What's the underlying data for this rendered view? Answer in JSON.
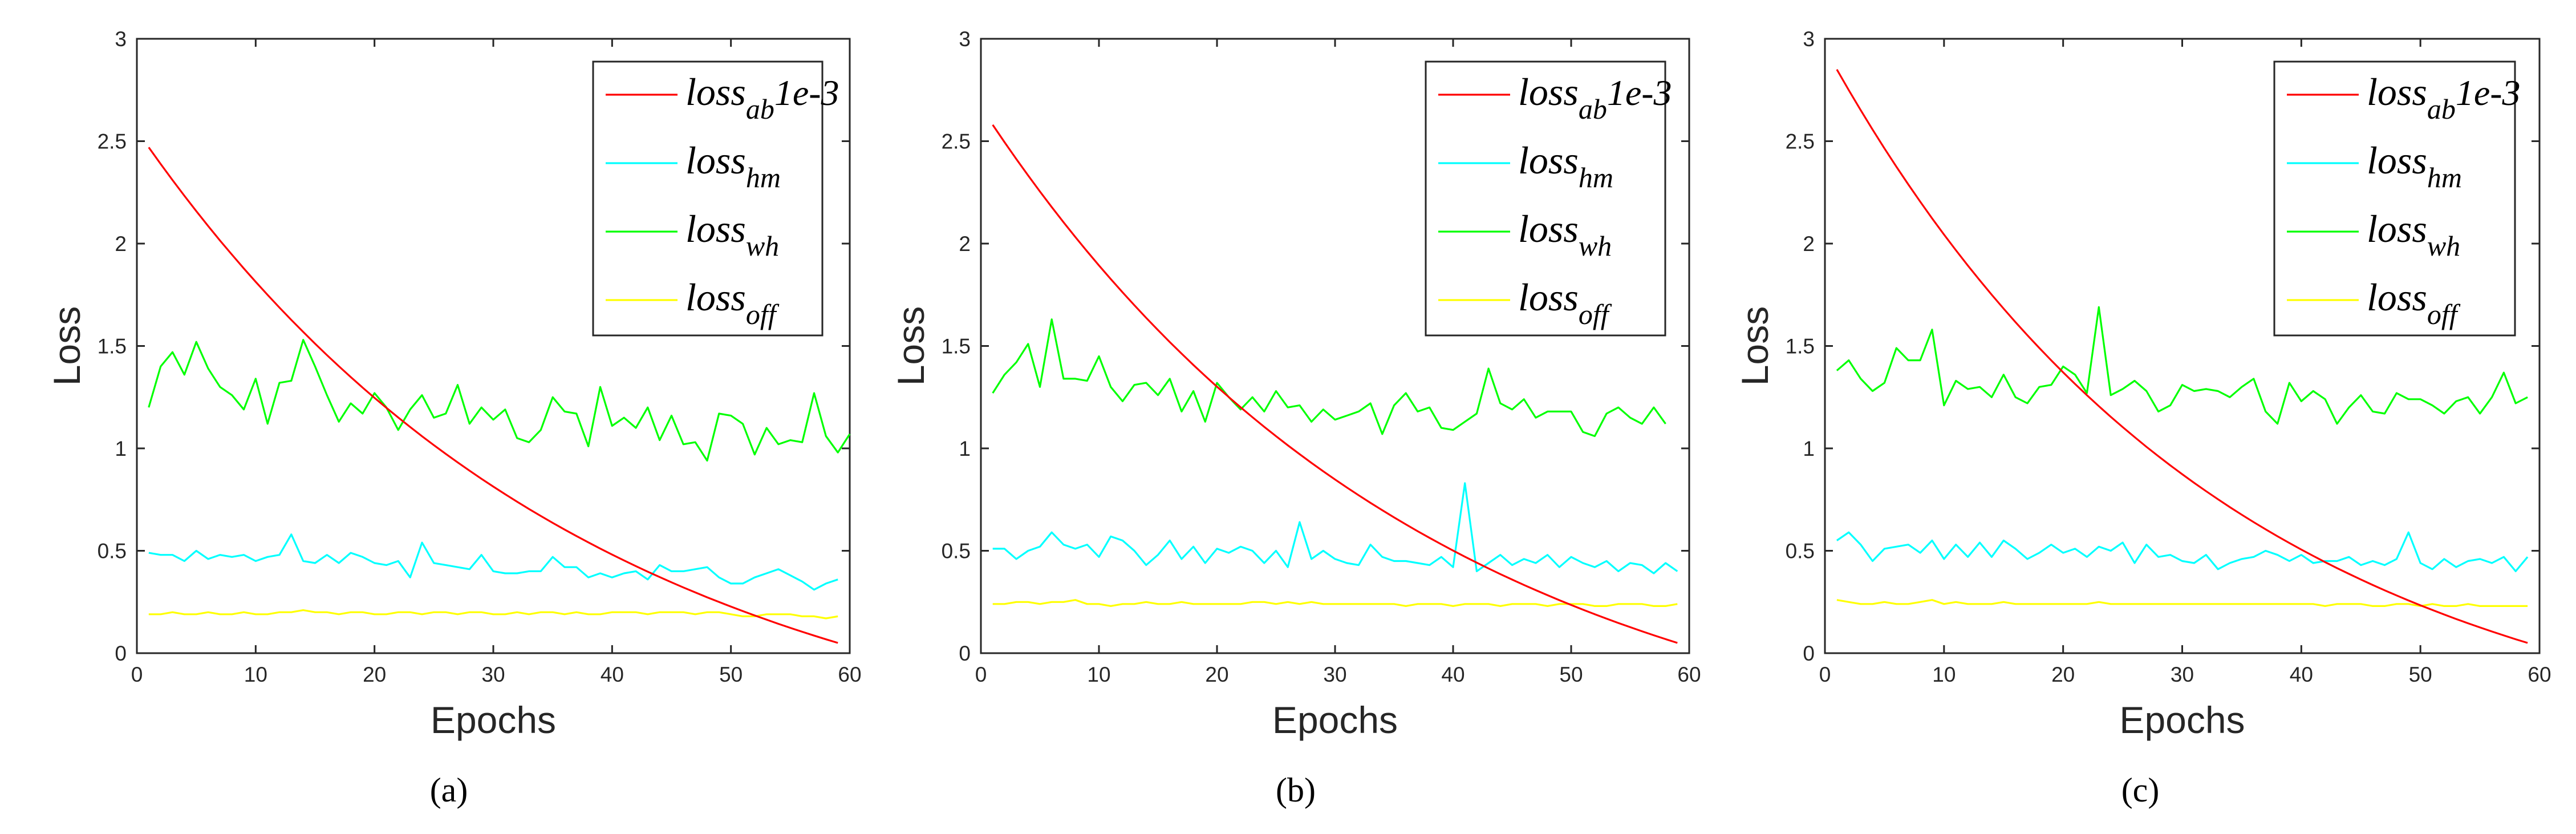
{
  "figure": {
    "captions": [
      "(a)",
      "(b)",
      "(c)"
    ]
  },
  "chart_data": [
    {
      "type": "line",
      "panel_label": "(a)",
      "xlabel": "Epochs",
      "ylabel": "Loss",
      "xlim": [
        0,
        60
      ],
      "ylim": [
        0,
        3
      ],
      "xticks": [
        0,
        10,
        20,
        30,
        40,
        50,
        60
      ],
      "yticks": [
        0,
        0.5,
        1,
        1.5,
        2,
        2.5,
        3
      ],
      "xtick_labels": [
        "0",
        "10",
        "20",
        "30",
        "40",
        "50",
        "60"
      ],
      "ytick_labels": [
        "0",
        "0.5",
        "1",
        "1.5",
        "2",
        "2.5",
        "3"
      ],
      "legend_position": "top-right",
      "series": [
        {
          "name": "loss_ab 1e-3",
          "base": "loss",
          "sub": "ab",
          "suffix": "1e-3",
          "color": "#ff0000",
          "start": 2.47,
          "end": 0.05,
          "curvature": 1.55
        },
        {
          "name": "loss_hm",
          "base": "loss",
          "sub": "hm",
          "suffix": "",
          "color": "#00ffff",
          "values": [
            0.49,
            0.48,
            0.48,
            0.45,
            0.5,
            0.46,
            0.48,
            0.47,
            0.48,
            0.45,
            0.47,
            0.48,
            0.58,
            0.45,
            0.44,
            0.48,
            0.44,
            0.49,
            0.47,
            0.44,
            0.43,
            0.45,
            0.37,
            0.54,
            0.44,
            0.43,
            0.42,
            0.41,
            0.48,
            0.4,
            0.39,
            0.39,
            0.4,
            0.4,
            0.47,
            0.42,
            0.42,
            0.37,
            0.39,
            0.37,
            0.39,
            0.4,
            0.36,
            0.43,
            0.4,
            0.4,
            0.41,
            0.42,
            0.37,
            0.34,
            0.34,
            0.37,
            0.39,
            0.41,
            0.38,
            0.35,
            0.31,
            0.34,
            0.36
          ]
        },
        {
          "name": "loss_wh",
          "base": "loss",
          "sub": "wh",
          "suffix": "",
          "color": "#00ff00",
          "values": [
            1.2,
            1.4,
            1.47,
            1.36,
            1.52,
            1.39,
            1.3,
            1.26,
            1.19,
            1.34,
            1.12,
            1.32,
            1.33,
            1.53,
            1.4,
            1.26,
            1.13,
            1.22,
            1.17,
            1.27,
            1.2,
            1.09,
            1.19,
            1.26,
            1.15,
            1.17,
            1.31,
            1.12,
            1.2,
            1.14,
            1.19,
            1.05,
            1.03,
            1.09,
            1.25,
            1.18,
            1.17,
            1.01,
            1.3,
            1.11,
            1.15,
            1.1,
            1.2,
            1.04,
            1.16,
            1.02,
            1.03,
            0.94,
            1.17,
            1.16,
            1.12,
            0.97,
            1.1,
            1.02,
            1.04,
            1.03,
            1.27,
            1.06,
            0.98,
            1.07
          ]
        },
        {
          "name": "loss_off",
          "base": "loss",
          "sub": "off",
          "suffix": "",
          "color": "#ffff00",
          "values": [
            0.19,
            0.19,
            0.2,
            0.19,
            0.19,
            0.2,
            0.19,
            0.19,
            0.2,
            0.19,
            0.19,
            0.2,
            0.2,
            0.21,
            0.2,
            0.2,
            0.19,
            0.2,
            0.2,
            0.19,
            0.19,
            0.2,
            0.2,
            0.19,
            0.2,
            0.2,
            0.19,
            0.2,
            0.2,
            0.19,
            0.19,
            0.2,
            0.19,
            0.2,
            0.2,
            0.19,
            0.2,
            0.19,
            0.19,
            0.2,
            0.2,
            0.2,
            0.19,
            0.2,
            0.2,
            0.2,
            0.19,
            0.2,
            0.2,
            0.19,
            0.18,
            0.18,
            0.19,
            0.19,
            0.19,
            0.18,
            0.18,
            0.17,
            0.18
          ]
        }
      ]
    },
    {
      "type": "line",
      "panel_label": "(b)",
      "xlabel": "Epochs",
      "ylabel": "Loss",
      "xlim": [
        0,
        60
      ],
      "ylim": [
        0,
        3
      ],
      "xticks": [
        0,
        10,
        20,
        30,
        40,
        50,
        60
      ],
      "yticks": [
        0,
        0.5,
        1,
        1.5,
        2,
        2.5,
        3
      ],
      "xtick_labels": [
        "0",
        "10",
        "20",
        "30",
        "40",
        "50",
        "60"
      ],
      "ytick_labels": [
        "0",
        "0.5",
        "1",
        "1.5",
        "2",
        "2.5",
        "3"
      ],
      "legend_position": "top-right",
      "series": [
        {
          "name": "loss_ab 1e-3",
          "base": "loss",
          "sub": "ab",
          "suffix": "1e-3",
          "color": "#ff0000",
          "start": 2.58,
          "end": 0.05,
          "curvature": 1.55
        },
        {
          "name": "loss_hm",
          "base": "loss",
          "sub": "hm",
          "suffix": "",
          "color": "#00ffff",
          "values": [
            0.51,
            0.51,
            0.46,
            0.5,
            0.52,
            0.59,
            0.53,
            0.51,
            0.53,
            0.47,
            0.57,
            0.55,
            0.5,
            0.43,
            0.48,
            0.55,
            0.46,
            0.52,
            0.44,
            0.51,
            0.49,
            0.52,
            0.5,
            0.44,
            0.5,
            0.42,
            0.64,
            0.46,
            0.5,
            0.46,
            0.44,
            0.43,
            0.53,
            0.47,
            0.45,
            0.45,
            0.44,
            0.43,
            0.47,
            0.42,
            0.83,
            0.4,
            0.44,
            0.48,
            0.43,
            0.46,
            0.44,
            0.48,
            0.42,
            0.47,
            0.44,
            0.42,
            0.45,
            0.4,
            0.44,
            0.43,
            0.39,
            0.44,
            0.4
          ]
        },
        {
          "name": "loss_wh",
          "base": "loss",
          "sub": "wh",
          "suffix": "",
          "color": "#00ff00",
          "values": [
            1.27,
            1.36,
            1.42,
            1.51,
            1.3,
            1.63,
            1.34,
            1.34,
            1.33,
            1.45,
            1.3,
            1.23,
            1.31,
            1.32,
            1.26,
            1.34,
            1.18,
            1.28,
            1.13,
            1.32,
            1.25,
            1.19,
            1.25,
            1.18,
            1.28,
            1.2,
            1.21,
            1.13,
            1.19,
            1.14,
            1.16,
            1.18,
            1.22,
            1.07,
            1.21,
            1.27,
            1.18,
            1.2,
            1.1,
            1.09,
            1.13,
            1.17,
            1.39,
            1.22,
            1.19,
            1.24,
            1.15,
            1.18,
            1.18,
            1.18,
            1.08,
            1.06,
            1.17,
            1.2,
            1.15,
            1.12,
            1.2,
            1.12
          ]
        },
        {
          "name": "loss_off",
          "base": "loss",
          "sub": "off",
          "suffix": "",
          "color": "#ffff00",
          "values": [
            0.24,
            0.24,
            0.25,
            0.25,
            0.24,
            0.25,
            0.25,
            0.26,
            0.24,
            0.24,
            0.23,
            0.24,
            0.24,
            0.25,
            0.24,
            0.24,
            0.25,
            0.24,
            0.24,
            0.24,
            0.24,
            0.24,
            0.25,
            0.25,
            0.24,
            0.25,
            0.24,
            0.25,
            0.24,
            0.24,
            0.24,
            0.24,
            0.24,
            0.24,
            0.24,
            0.23,
            0.24,
            0.24,
            0.24,
            0.23,
            0.24,
            0.24,
            0.24,
            0.23,
            0.24,
            0.24,
            0.24,
            0.23,
            0.24,
            0.24,
            0.24,
            0.23,
            0.23,
            0.24,
            0.24,
            0.24,
            0.23,
            0.23,
            0.24
          ]
        }
      ]
    },
    {
      "type": "line",
      "panel_label": "(c)",
      "xlabel": "Epochs",
      "ylabel": "Loss",
      "xlim": [
        0,
        60
      ],
      "ylim": [
        0,
        3
      ],
      "xticks": [
        0,
        10,
        20,
        30,
        40,
        50,
        60
      ],
      "yticks": [
        0,
        0.5,
        1,
        1.5,
        2,
        2.5,
        3
      ],
      "xtick_labels": [
        "0",
        "10",
        "20",
        "30",
        "40",
        "50",
        "60"
      ],
      "ytick_labels": [
        "0",
        "0.5",
        "1",
        "1.5",
        "2",
        "2.5",
        "3"
      ],
      "legend_position": "top-right",
      "series": [
        {
          "name": "loss_ab 1e-3",
          "base": "loss",
          "sub": "ab",
          "suffix": "1e-3",
          "color": "#ff0000",
          "start": 2.85,
          "end": 0.05,
          "curvature": 1.75
        },
        {
          "name": "loss_hm",
          "base": "loss",
          "sub": "hm",
          "suffix": "",
          "color": "#00ffff",
          "values": [
            0.55,
            0.59,
            0.53,
            0.45,
            0.51,
            0.52,
            0.53,
            0.49,
            0.55,
            0.46,
            0.53,
            0.47,
            0.54,
            0.47,
            0.55,
            0.51,
            0.46,
            0.49,
            0.53,
            0.49,
            0.51,
            0.47,
            0.52,
            0.5,
            0.54,
            0.44,
            0.53,
            0.47,
            0.48,
            0.45,
            0.44,
            0.48,
            0.41,
            0.44,
            0.46,
            0.47,
            0.5,
            0.48,
            0.45,
            0.48,
            0.44,
            0.45,
            0.45,
            0.47,
            0.43,
            0.45,
            0.43,
            0.46,
            0.59,
            0.44,
            0.41,
            0.46,
            0.42,
            0.45,
            0.46,
            0.44,
            0.47,
            0.4,
            0.47
          ]
        },
        {
          "name": "loss_wh",
          "base": "loss",
          "sub": "wh",
          "suffix": "",
          "color": "#00ff00",
          "values": [
            1.38,
            1.43,
            1.34,
            1.28,
            1.32,
            1.49,
            1.43,
            1.43,
            1.58,
            1.21,
            1.33,
            1.29,
            1.3,
            1.25,
            1.36,
            1.25,
            1.22,
            1.3,
            1.31,
            1.4,
            1.36,
            1.27,
            1.69,
            1.26,
            1.29,
            1.33,
            1.28,
            1.18,
            1.21,
            1.31,
            1.28,
            1.29,
            1.28,
            1.25,
            1.3,
            1.34,
            1.18,
            1.12,
            1.32,
            1.23,
            1.28,
            1.24,
            1.12,
            1.2,
            1.26,
            1.18,
            1.17,
            1.27,
            1.24,
            1.24,
            1.21,
            1.17,
            1.23,
            1.25,
            1.17,
            1.25,
            1.37,
            1.22,
            1.25
          ]
        },
        {
          "name": "loss_off",
          "base": "loss",
          "sub": "off",
          "suffix": "",
          "color": "#ffff00",
          "values": [
            0.26,
            0.25,
            0.24,
            0.24,
            0.25,
            0.24,
            0.24,
            0.25,
            0.26,
            0.24,
            0.25,
            0.24,
            0.24,
            0.24,
            0.25,
            0.24,
            0.24,
            0.24,
            0.24,
            0.24,
            0.24,
            0.24,
            0.25,
            0.24,
            0.24,
            0.24,
            0.24,
            0.24,
            0.24,
            0.24,
            0.24,
            0.24,
            0.24,
            0.24,
            0.24,
            0.24,
            0.24,
            0.24,
            0.24,
            0.24,
            0.24,
            0.23,
            0.24,
            0.24,
            0.24,
            0.23,
            0.23,
            0.24,
            0.24,
            0.23,
            0.24,
            0.23,
            0.23,
            0.24,
            0.23,
            0.23,
            0.23,
            0.23,
            0.23
          ]
        }
      ]
    }
  ]
}
